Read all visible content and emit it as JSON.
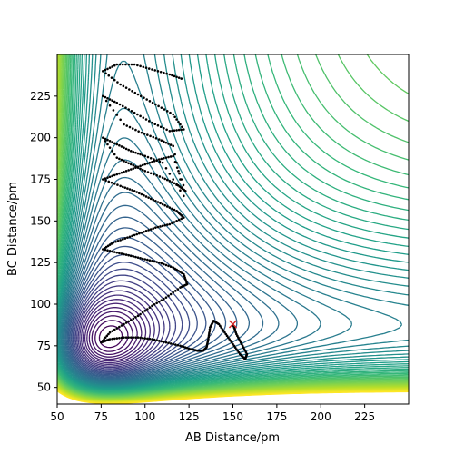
{
  "chart_data": {
    "type": "contour",
    "title": "",
    "xlabel": "AB Distance/pm",
    "ylabel": "BC Distance/pm",
    "xlim": [
      50,
      250
    ],
    "ylim": [
      40,
      250
    ],
    "xticks": [
      50,
      75,
      100,
      125,
      150,
      175,
      200,
      225
    ],
    "yticks": [
      50,
      75,
      100,
      125,
      150,
      175,
      200,
      225
    ],
    "grid": false,
    "colormap": "viridis",
    "contour_levels": 60,
    "start_marker": {
      "x": 150,
      "y": 88,
      "symbol": "x",
      "color": "#d62728"
    },
    "trajectory": [
      [
        150,
        88
      ],
      [
        152,
        82
      ],
      [
        155,
        76
      ],
      [
        158,
        70
      ],
      [
        157,
        67
      ],
      [
        154,
        70
      ],
      [
        150,
        76
      ],
      [
        146,
        82
      ],
      [
        142,
        88
      ],
      [
        139,
        90
      ],
      [
        137,
        86
      ],
      [
        136,
        79
      ],
      [
        135,
        74
      ],
      [
        133,
        72
      ],
      [
        130,
        72
      ],
      [
        126,
        73
      ],
      [
        120,
        75
      ],
      [
        112,
        77
      ],
      [
        104,
        79
      ],
      [
        96,
        80
      ],
      [
        88,
        80
      ],
      [
        80,
        79
      ],
      [
        75,
        77
      ],
      [
        80,
        83
      ],
      [
        88,
        88
      ],
      [
        96,
        93
      ],
      [
        104,
        99
      ],
      [
        112,
        104
      ],
      [
        120,
        110
      ],
      [
        124,
        112
      ],
      [
        122,
        118
      ],
      [
        116,
        122
      ],
      [
        108,
        125
      ],
      [
        100,
        127
      ],
      [
        92,
        129
      ],
      [
        84,
        131
      ],
      [
        76,
        133
      ],
      [
        82,
        137
      ],
      [
        90,
        140
      ],
      [
        98,
        143
      ],
      [
        106,
        146
      ],
      [
        114,
        148
      ],
      [
        122,
        152
      ],
      [
        118,
        156
      ],
      [
        110,
        160
      ],
      [
        102,
        164
      ],
      [
        94,
        168
      ],
      [
        86,
        171
      ],
      [
        76,
        175
      ],
      [
        84,
        178
      ],
      [
        92,
        181
      ],
      [
        100,
        184
      ],
      [
        108,
        187
      ],
      [
        116,
        189
      ],
      [
        123,
        168
      ],
      [
        118,
        172
      ],
      [
        110,
        176
      ],
      [
        100,
        180
      ],
      [
        92,
        184
      ],
      [
        84,
        188
      ],
      [
        76,
        200
      ],
      [
        84,
        196
      ],
      [
        92,
        192
      ],
      [
        100,
        189
      ],
      [
        110,
        185
      ],
      [
        122,
        165
      ],
      [
        116,
        195
      ],
      [
        108,
        199
      ],
      [
        98,
        203
      ],
      [
        88,
        208
      ],
      [
        76,
        225
      ],
      [
        84,
        221
      ],
      [
        94,
        215
      ],
      [
        104,
        209
      ],
      [
        114,
        204
      ],
      [
        122,
        205
      ],
      [
        116,
        214
      ],
      [
        106,
        220
      ],
      [
        96,
        226
      ],
      [
        86,
        232
      ],
      [
        76,
        240
      ],
      [
        84,
        244
      ],
      [
        94,
        244
      ],
      [
        104,
        241
      ],
      [
        114,
        238
      ],
      [
        122,
        235
      ]
    ]
  }
}
